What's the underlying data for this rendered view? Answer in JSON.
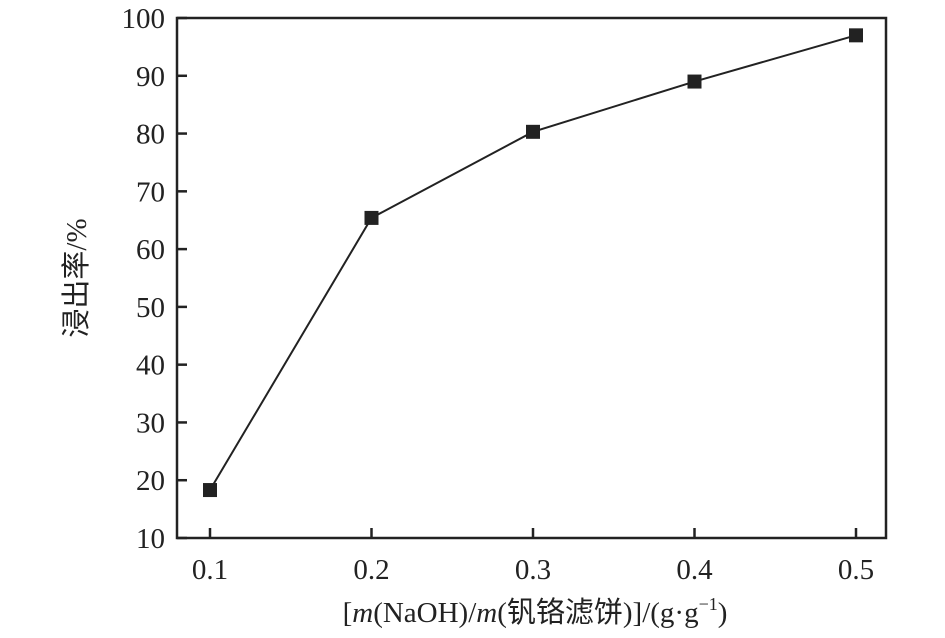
{
  "chart_data": {
    "type": "line",
    "title": "",
    "xlabel_parts": [
      "[",
      "m",
      "(NaOH)/",
      "m",
      "(钒铬滤饼)]/(g·g",
      "−1",
      ")"
    ],
    "ylabel": "浸出率/%",
    "x": [
      0.1,
      0.2,
      0.3,
      0.4,
      0.5
    ],
    "series": [
      {
        "values": [
          18.3,
          65.4,
          80.3,
          89.0,
          97.0
        ],
        "marker": "square",
        "color": "#222222"
      }
    ],
    "xlim": [
      0.08,
      0.52
    ],
    "ylim": [
      10,
      100
    ],
    "xticks": [
      "0.1",
      "0.2",
      "0.3",
      "0.4",
      "0.5"
    ],
    "yticks": [
      "10",
      "20",
      "30",
      "40",
      "50",
      "60",
      "70",
      "80",
      "90",
      "100"
    ],
    "grid": false,
    "legend": "none"
  }
}
